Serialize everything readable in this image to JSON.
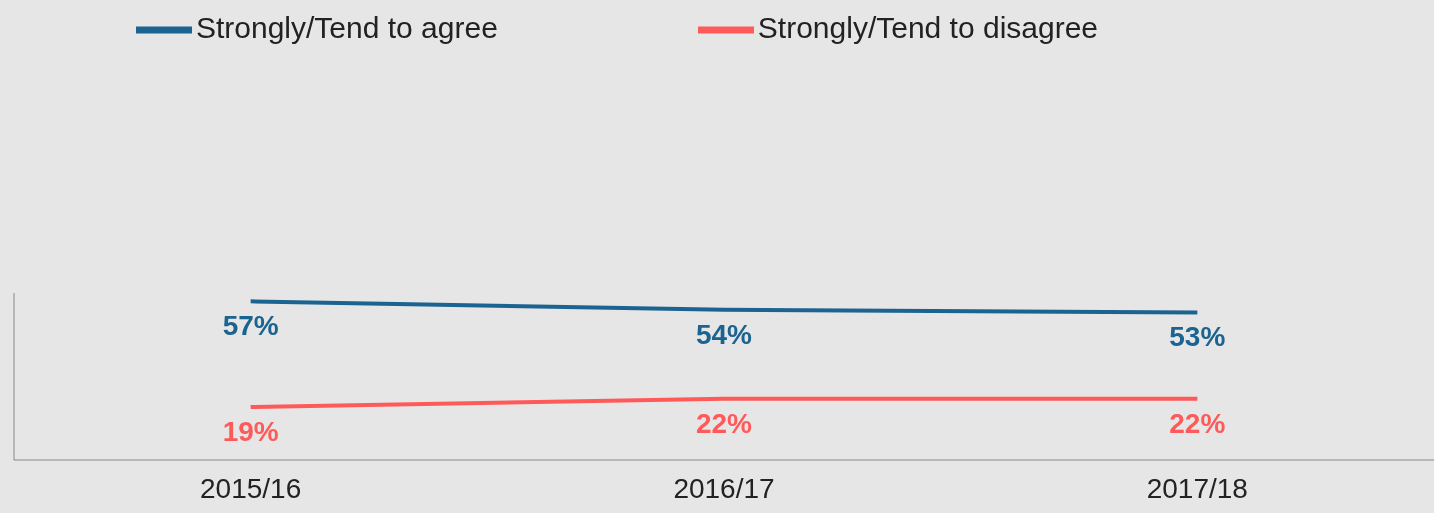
{
  "chart_data": {
    "type": "line",
    "categories": [
      "2015/16",
      "2016/17",
      "2017/18"
    ],
    "series": [
      {
        "name": "Strongly/Tend to agree",
        "color": "#1b6390",
        "values": [
          57,
          54,
          53
        ],
        "value_labels": [
          "57%",
          "54%",
          "53%"
        ]
      },
      {
        "name": "Strongly/Tend to disagree",
        "color": "#ff5a5a",
        "values": [
          19,
          22,
          22
        ],
        "value_labels": [
          "19%",
          "22%",
          "22%"
        ]
      }
    ],
    "tick_labels": "x",
    "legend": "top",
    "grid": false,
    "marker": "none",
    "line_style": "solid"
  }
}
